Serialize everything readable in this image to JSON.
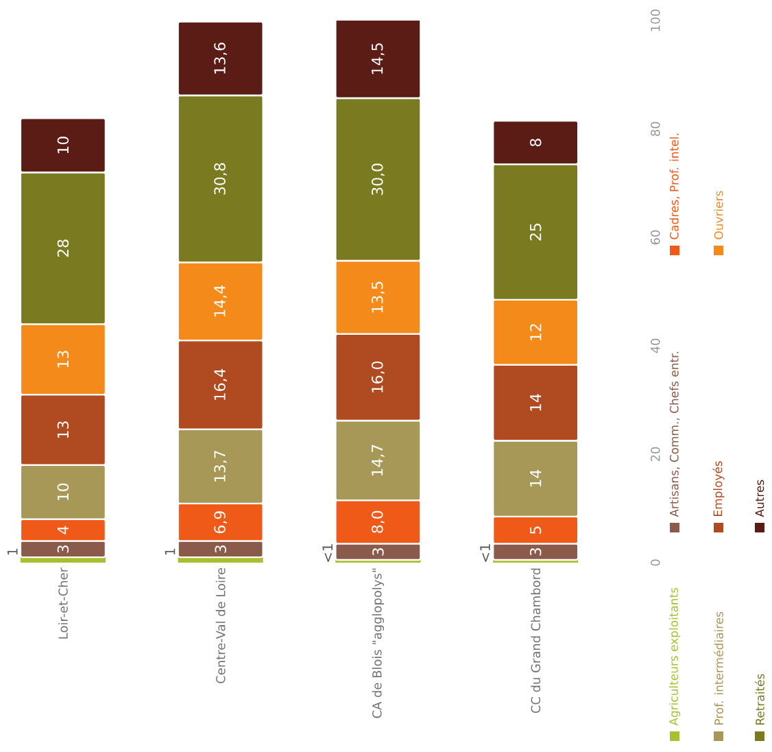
{
  "chart_data": {
    "type": "bar",
    "stacked": true,
    "categories": [
      "Loir-et-Cher",
      "Centre-Val de Loire",
      "CA de Blois \"agglopolys\"",
      "CC du Grand Chambord"
    ],
    "ylim": [
      0,
      100
    ],
    "yticks": [
      0,
      20,
      40,
      60,
      80,
      100
    ],
    "legend": "right",
    "series": [
      {
        "name": "Agriculteurs exploitants",
        "color": "#a8c030",
        "values": [
          1,
          1,
          0.5,
          0.5
        ],
        "value_labels": [
          "1",
          "1",
          "<1",
          "<1"
        ]
      },
      {
        "name": "Artisans, Comm., Chefs entr.",
        "color": "#8a5a4a",
        "values": [
          3,
          3,
          3,
          3
        ],
        "value_labels": [
          "3",
          "3",
          "3",
          "3"
        ]
      },
      {
        "name": "Cadres, Prof. intel.",
        "color": "#f05a18",
        "values": [
          4,
          6.9,
          8.0,
          5
        ],
        "value_labels": [
          "4",
          "6,9",
          "8,0",
          "5"
        ]
      },
      {
        "name": "Prof. intermédiaires",
        "color": "#a89858",
        "values": [
          10,
          13.7,
          14.7,
          14
        ],
        "value_labels": [
          "10",
          "13,7",
          "14,7",
          "14"
        ]
      },
      {
        "name": "Employés",
        "color": "#b04a20",
        "values": [
          13,
          16.4,
          16.0,
          14
        ],
        "value_labels": [
          "13",
          "16,4",
          "16,0",
          "14"
        ]
      },
      {
        "name": "Ouvriers",
        "color": "#f48a1a",
        "values": [
          13,
          14.4,
          13.5,
          12
        ],
        "value_labels": [
          "13",
          "14,4",
          "13,5",
          "12"
        ]
      },
      {
        "name": "Retraités",
        "color": "#7a7a20",
        "values": [
          28,
          30.8,
          30.0,
          25
        ],
        "value_labels": [
          "28",
          "30,8",
          "30,0",
          "25"
        ]
      },
      {
        "name": "Autres",
        "color": "#5a1c14",
        "values": [
          10,
          13.6,
          14.5,
          8
        ],
        "value_labels": [
          "10",
          "13,6",
          "14,5",
          "8"
        ]
      }
    ]
  }
}
